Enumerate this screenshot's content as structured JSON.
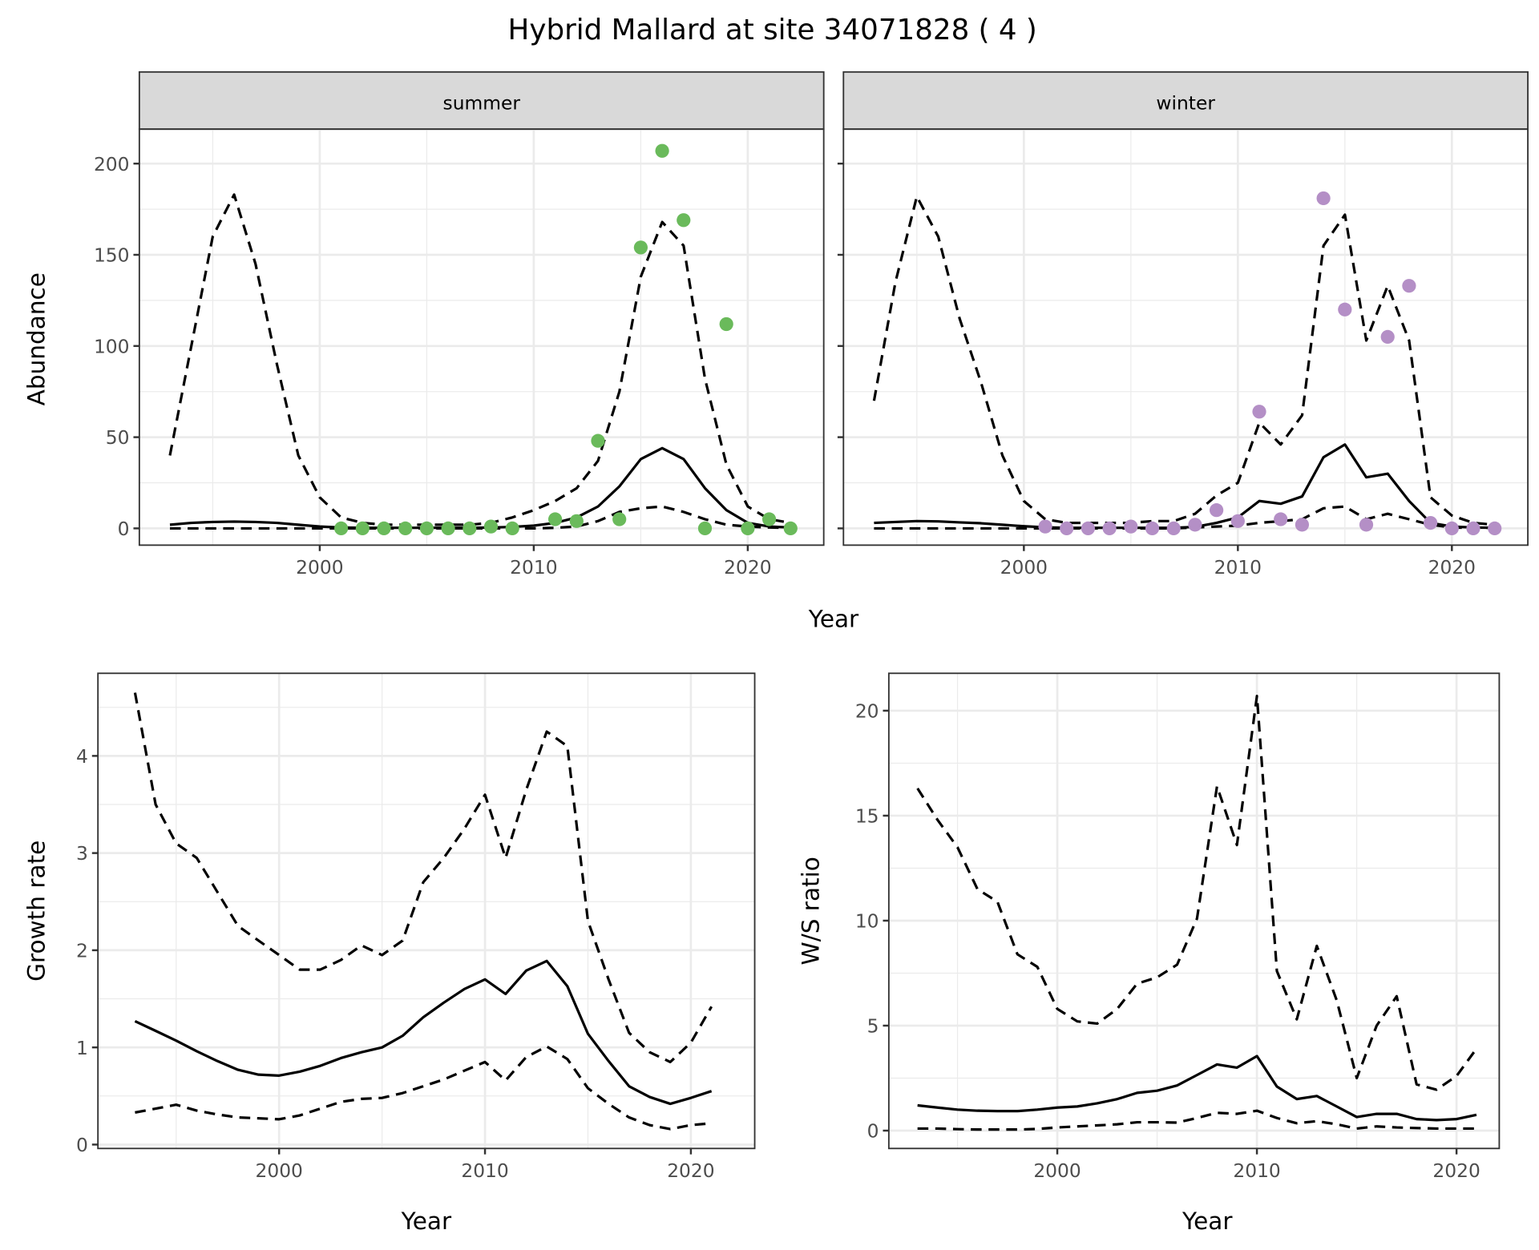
{
  "title": "Hybrid Mallard at site 34071828 ( 4 )",
  "colors": {
    "summer": "#6aba5b",
    "winter": "#b48fc6",
    "line": "#000000",
    "grid": "#ebebeb",
    "strip": "#d9d9d9"
  },
  "chart_data": [
    {
      "type": "line",
      "facet": "summer",
      "xlabel": "Year",
      "ylabel": "Abundance",
      "xlim": [
        1991.57,
        2023.55
      ],
      "ylim": [
        -9.2,
        218.9
      ],
      "xticks": [
        2000,
        2010,
        2020
      ],
      "yticks": [
        0,
        50,
        100,
        150,
        200
      ],
      "grid": true,
      "x": [
        1993,
        1994,
        1995,
        1996,
        1997,
        1998,
        1999,
        2000,
        2001,
        2002,
        2003,
        2004,
        2005,
        2006,
        2007,
        2008,
        2009,
        2010,
        2011,
        2012,
        2013,
        2014,
        2015,
        2016,
        2017,
        2018,
        2019,
        2020,
        2021,
        2022
      ],
      "series": [
        {
          "name": "mean",
          "style": "solid",
          "values": [
            2,
            3,
            3.5,
            3.7,
            3.5,
            3,
            2,
            1,
            0.5,
            0.3,
            0.3,
            0.3,
            0.3,
            0.3,
            0.3,
            0.5,
            0.8,
            1.5,
            3,
            6,
            12,
            23,
            38,
            44,
            38,
            22,
            10,
            3,
            1,
            0.5
          ]
        },
        {
          "name": "upper",
          "style": "dashed",
          "values": [
            40,
            100,
            160,
            183,
            145,
            90,
            40,
            17,
            6,
            3,
            2,
            2,
            2,
            2,
            2,
            3,
            6,
            10,
            15,
            22,
            37,
            75,
            138,
            168,
            155,
            82,
            35,
            12,
            5,
            3
          ]
        },
        {
          "name": "lower",
          "style": "dashed",
          "values": [
            0,
            0,
            0,
            0,
            0,
            0,
            0,
            0,
            0,
            0,
            0,
            0,
            0,
            0,
            0,
            0,
            0,
            0,
            0.3,
            1,
            4,
            9,
            11,
            12,
            9,
            5,
            2,
            1,
            0.5,
            0.3
          ]
        }
      ],
      "points": {
        "x": [
          2001,
          2002,
          2003,
          2004,
          2005,
          2006,
          2007,
          2008,
          2009,
          2011,
          2012,
          2013,
          2014,
          2015,
          2016,
          2017,
          2018,
          2019,
          2020,
          2021,
          2022
        ],
        "y": [
          0,
          0,
          0,
          0,
          0,
          0,
          0,
          1,
          0,
          5,
          4,
          48,
          5,
          154,
          207,
          169,
          0,
          112,
          0,
          5,
          0
        ]
      }
    },
    {
      "type": "line",
      "facet": "winter",
      "xlabel": "Year",
      "ylabel": "Abundance",
      "xlim": [
        1991.57,
        2023.55
      ],
      "ylim": [
        -9.2,
        218.9
      ],
      "xticks": [
        2000,
        2010,
        2020
      ],
      "yticks": [
        0,
        50,
        100,
        150,
        200
      ],
      "grid": true,
      "x": [
        1993,
        1994,
        1995,
        1996,
        1997,
        1998,
        1999,
        2000,
        2001,
        2002,
        2003,
        2004,
        2005,
        2006,
        2007,
        2008,
        2009,
        2010,
        2011,
        2012,
        2013,
        2014,
        2015,
        2016,
        2017,
        2018,
        2019,
        2020,
        2021,
        2022
      ],
      "series": [
        {
          "name": "mean",
          "style": "solid",
          "values": [
            3,
            3.5,
            4,
            3.8,
            3.3,
            2.8,
            2,
            1.2,
            0.6,
            0.3,
            0.3,
            0.3,
            0.3,
            0.3,
            0.3,
            0.8,
            3,
            6,
            15,
            13.5,
            17.5,
            39,
            46,
            28,
            30,
            15,
            3,
            1,
            0.5,
            0.3
          ]
        },
        {
          "name": "upper",
          "style": "dashed",
          "values": [
            70,
            135,
            182,
            160,
            115,
            80,
            40,
            15,
            5,
            3,
            3,
            3,
            3,
            4,
            4,
            8,
            18,
            25,
            58,
            46,
            62,
            155,
            172,
            103,
            133,
            103,
            17,
            7,
            3,
            2
          ]
        },
        {
          "name": "lower",
          "style": "dashed",
          "values": [
            0,
            0,
            0,
            0,
            0,
            0,
            0,
            0,
            0,
            0,
            0,
            0,
            0,
            0,
            0,
            0.5,
            1,
            1.5,
            3,
            4,
            5,
            11,
            12,
            5,
            8,
            5,
            2,
            0.5,
            0.3,
            0.3
          ]
        }
      ],
      "points": {
        "x": [
          2001,
          2002,
          2003,
          2004,
          2005,
          2006,
          2007,
          2008,
          2009,
          2010,
          2011,
          2012,
          2013,
          2014,
          2015,
          2016,
          2017,
          2018,
          2019,
          2020,
          2021,
          2022
        ],
        "y": [
          1,
          0,
          0,
          0,
          1,
          0,
          0,
          2,
          10,
          4,
          64,
          5,
          2,
          181,
          120,
          2,
          105,
          133,
          3,
          0,
          0,
          0
        ]
      }
    },
    {
      "type": "line",
      "xlabel": "Year",
      "ylabel": "Growth rate",
      "xlim": [
        1991.2,
        2023.1
      ],
      "ylim": [
        -0.04,
        4.85
      ],
      "xticks": [
        2000,
        2010,
        2020
      ],
      "yticks": [
        0,
        1,
        2,
        3,
        4
      ],
      "grid": true,
      "x": [
        1993,
        1994,
        1995,
        1996,
        1997,
        1998,
        1999,
        2000,
        2001,
        2002,
        2003,
        2004,
        2005,
        2006,
        2007,
        2008,
        2009,
        2010,
        2011,
        2012,
        2013,
        2014,
        2015,
        2016,
        2017,
        2018,
        2019,
        2020,
        2021
      ],
      "series": [
        {
          "name": "mean",
          "style": "solid",
          "values": [
            1.27,
            1.17,
            1.07,
            0.96,
            0.86,
            0.77,
            0.72,
            0.71,
            0.75,
            0.81,
            0.89,
            0.95,
            1.0,
            1.12,
            1.31,
            1.46,
            1.6,
            1.7,
            1.55,
            1.79,
            1.89,
            1.63,
            1.14,
            0.86,
            0.6,
            0.49,
            0.42,
            0.48,
            0.55
          ]
        },
        {
          "name": "upper",
          "style": "dashed",
          "values": [
            4.65,
            3.5,
            3.1,
            2.95,
            2.6,
            2.25,
            2.1,
            1.95,
            1.8,
            1.8,
            1.9,
            2.05,
            1.95,
            2.1,
            2.7,
            2.95,
            3.25,
            3.6,
            2.95,
            3.65,
            4.25,
            4.1,
            2.3,
            1.7,
            1.15,
            0.95,
            0.85,
            1.05,
            1.42
          ]
        },
        {
          "name": "lower",
          "style": "dashed",
          "values": [
            0.33,
            0.37,
            0.41,
            0.35,
            0.31,
            0.28,
            0.27,
            0.26,
            0.3,
            0.37,
            0.44,
            0.47,
            0.48,
            0.53,
            0.6,
            0.67,
            0.76,
            0.85,
            0.66,
            0.9,
            1.01,
            0.88,
            0.58,
            0.42,
            0.28,
            0.2,
            0.16,
            0.2,
            0.22
          ]
        }
      ]
    },
    {
      "type": "line",
      "xlabel": "Year",
      "ylabel": "W/S ratio",
      "xlim": [
        1991.56,
        2022.14
      ],
      "ylim": [
        -0.85,
        21.78
      ],
      "xticks": [
        2000,
        2010,
        2020
      ],
      "yticks": [
        0,
        5,
        10,
        15,
        20
      ],
      "grid": true,
      "x": [
        1993,
        1994,
        1995,
        1996,
        1997,
        1998,
        1999,
        2000,
        2001,
        2002,
        2003,
        2004,
        2005,
        2006,
        2007,
        2008,
        2009,
        2010,
        2011,
        2012,
        2013,
        2014,
        2015,
        2016,
        2017,
        2018,
        2019,
        2020,
        2021
      ],
      "series": [
        {
          "name": "mean",
          "style": "solid",
          "values": [
            1.2,
            1.1,
            1.0,
            0.95,
            0.93,
            0.93,
            1.0,
            1.1,
            1.15,
            1.3,
            1.5,
            1.8,
            1.9,
            2.15,
            2.65,
            3.15,
            3.0,
            3.55,
            2.1,
            1.5,
            1.65,
            1.15,
            0.65,
            0.8,
            0.8,
            0.55,
            0.5,
            0.55,
            0.75
          ]
        },
        {
          "name": "upper",
          "style": "dashed",
          "values": [
            16.3,
            14.8,
            13.5,
            11.5,
            10.9,
            8.4,
            7.8,
            5.8,
            5.2,
            5.1,
            5.8,
            7.0,
            7.3,
            7.9,
            10.1,
            16.4,
            13.6,
            20.7,
            7.6,
            5.3,
            8.8,
            6.2,
            2.5,
            5.0,
            6.4,
            2.2,
            1.95,
            2.6,
            3.9
          ]
        },
        {
          "name": "lower",
          "style": "dashed",
          "values": [
            0.1,
            0.1,
            0.07,
            0.05,
            0.05,
            0.05,
            0.08,
            0.15,
            0.2,
            0.25,
            0.3,
            0.4,
            0.4,
            0.38,
            0.6,
            0.85,
            0.8,
            0.95,
            0.6,
            0.35,
            0.45,
            0.3,
            0.1,
            0.2,
            0.15,
            0.12,
            0.1,
            0.1,
            0.1
          ]
        }
      ]
    }
  ]
}
